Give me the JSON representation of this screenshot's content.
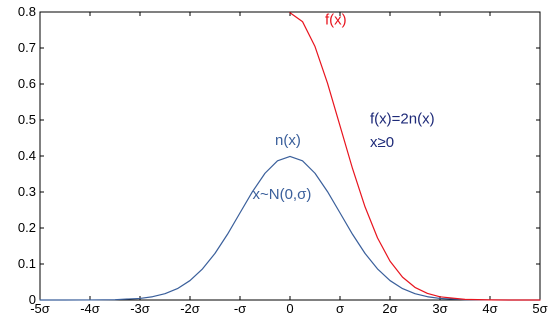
{
  "chart_data": {
    "type": "line",
    "title": "",
    "xlabel": "",
    "ylabel": "",
    "xlim": [
      -5,
      5
    ],
    "ylim": [
      0,
      0.8
    ],
    "grid": false,
    "legend": "none",
    "x_ticks": [
      -5,
      -4,
      -3,
      -2,
      -1,
      0,
      1,
      2,
      3,
      4,
      5
    ],
    "x_tick_labels": [
      "-5σ",
      "-4σ",
      "-3σ",
      "-2σ",
      "-σ",
      "0",
      "σ",
      "2σ",
      "3σ",
      "4σ",
      "5σ"
    ],
    "y_ticks": [
      0,
      0.1,
      0.2,
      0.3,
      0.4,
      0.5,
      0.6,
      0.7,
      0.8
    ],
    "y_tick_labels": [
      "0",
      "0.1",
      "0.2",
      "0.3",
      "0.4",
      "0.5",
      "0.6",
      "0.7",
      "0.8"
    ],
    "series": [
      {
        "color": "#3a5f9b",
        "x": [
          -5,
          -4.5,
          -4,
          -3.5,
          -3,
          -2.75,
          -2.5,
          -2.25,
          -2,
          -1.75,
          -1.5,
          -1.25,
          -1,
          -0.75,
          -0.5,
          -0.25,
          0,
          0.25,
          0.5,
          0.75,
          1,
          1.25,
          1.5,
          1.75,
          2,
          2.25,
          2.5,
          2.75,
          3,
          3.5,
          4,
          4.5,
          5
        ],
        "y": [
          0.0,
          0.0,
          0.0001,
          0.0009,
          0.0044,
          0.0091,
          0.0175,
          0.0317,
          0.054,
          0.0863,
          0.1295,
          0.1826,
          0.242,
          0.3011,
          0.3521,
          0.3867,
          0.3989,
          0.3867,
          0.3521,
          0.3011,
          0.242,
          0.1826,
          0.1295,
          0.0863,
          0.054,
          0.0317,
          0.0175,
          0.0091,
          0.0044,
          0.0009,
          0.0001,
          0.0,
          0.0
        ]
      },
      {
        "color": "#e8141e",
        "x": [
          0,
          0.25,
          0.5,
          0.75,
          1,
          1.25,
          1.5,
          1.75,
          2,
          2.25,
          2.5,
          2.75,
          3,
          3.5,
          4,
          4.5,
          5
        ],
        "y": [
          0.7979,
          0.7734,
          0.7041,
          0.6022,
          0.4839,
          0.3653,
          0.259,
          0.1725,
          0.108,
          0.0635,
          0.035,
          0.0182,
          0.0089,
          0.0017,
          0.0003,
          0.0,
          0.0
        ]
      }
    ],
    "annotations": [
      {
        "text": "f(x)",
        "x": 0.7,
        "y": 0.765,
        "color": "#e8141e"
      },
      {
        "text": "f(x)=2n(x)",
        "x": 1.6,
        "y": 0.49,
        "color": "#1e2a78"
      },
      {
        "text": "x≥0",
        "x": 1.6,
        "y": 0.425,
        "color": "#1e2a78"
      },
      {
        "text": "n(x)",
        "x": -0.3,
        "y": 0.43,
        "color": "#3a5f9b"
      },
      {
        "text": "x~N(0,σ)",
        "x": -0.75,
        "y": 0.28,
        "color": "#3a5f9b"
      }
    ]
  }
}
